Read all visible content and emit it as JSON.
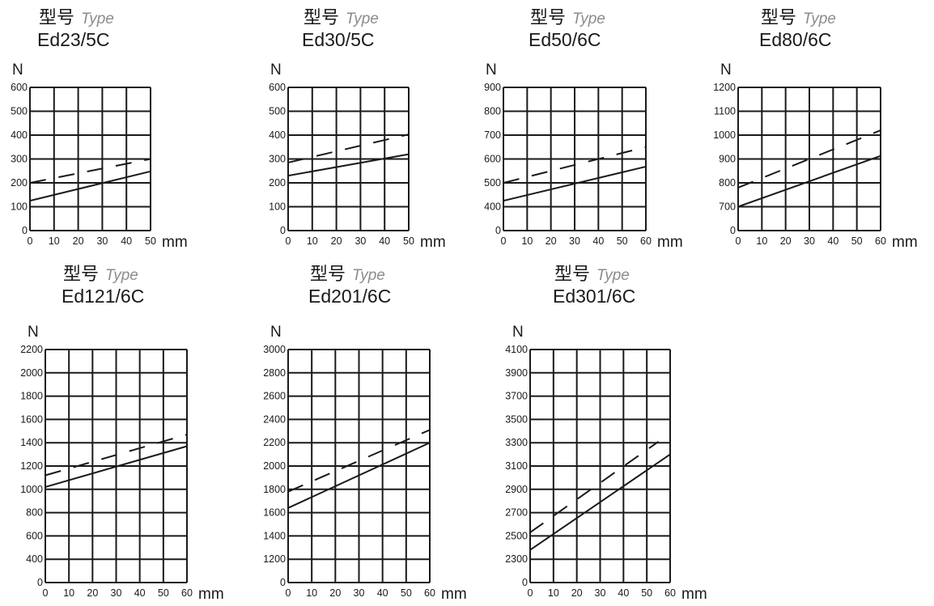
{
  "chart_data": [
    {
      "type": "line",
      "title": "型号",
      "title_en": "Type",
      "model": "Ed23/5C",
      "ylabel": "N",
      "xlabel": "mm",
      "xlim": [
        0,
        50
      ],
      "ylim": [
        0,
        600
      ],
      "xticks": [
        0,
        10,
        20,
        30,
        40,
        50
      ],
      "yticks": [
        0,
        100,
        200,
        300,
        400,
        500,
        600
      ],
      "grid": true,
      "series": [
        {
          "style": "dashed",
          "x": [
            0,
            50
          ],
          "y": [
            200,
            300
          ]
        },
        {
          "style": "solid",
          "x": [
            0,
            50
          ],
          "y": [
            125,
            248
          ]
        }
      ]
    },
    {
      "type": "line",
      "title": "型号",
      "title_en": "Type",
      "model": "Ed30/5C",
      "ylabel": "N",
      "xlabel": "mm",
      "xlim": [
        0,
        50
      ],
      "ylim": [
        0,
        600
      ],
      "xticks": [
        0,
        10,
        20,
        30,
        40,
        50
      ],
      "yticks": [
        0,
        100,
        200,
        300,
        400,
        500,
        600
      ],
      "grid": true,
      "series": [
        {
          "style": "dashed",
          "x": [
            0,
            50
          ],
          "y": [
            285,
            403
          ]
        },
        {
          "style": "solid",
          "x": [
            0,
            50
          ],
          "y": [
            230,
            320
          ]
        }
      ]
    },
    {
      "type": "line",
      "title": "型号",
      "title_en": "Type",
      "model": "Ed50/6C",
      "ylabel": "N",
      "xlabel": "mm",
      "xlim": [
        0,
        60
      ],
      "ylim": [
        0,
        900
      ],
      "xticks": [
        0,
        10,
        20,
        30,
        40,
        50,
        60
      ],
      "yticks": [
        0,
        400,
        500,
        600,
        700,
        800,
        900
      ],
      "grid": true,
      "series": [
        {
          "style": "dashed",
          "x": [
            0,
            60
          ],
          "y": [
            500,
            650
          ]
        },
        {
          "style": "solid",
          "x": [
            0,
            60
          ],
          "y": [
            425,
            568
          ]
        }
      ]
    },
    {
      "type": "line",
      "title": "型号",
      "title_en": "Type",
      "model": "Ed80/6C",
      "ylabel": "N",
      "xlabel": "mm",
      "xlim": [
        0,
        60
      ],
      "ylim": [
        0,
        1200
      ],
      "xticks": [
        0,
        10,
        20,
        30,
        40,
        50,
        60
      ],
      "yticks": [
        0,
        700,
        800,
        900,
        1000,
        1100,
        1200
      ],
      "grid": true,
      "series": [
        {
          "style": "dashed",
          "x": [
            0,
            60
          ],
          "y": [
            780,
            1020
          ]
        },
        {
          "style": "solid",
          "x": [
            0,
            60
          ],
          "y": [
            700,
            913
          ]
        }
      ]
    },
    {
      "type": "line",
      "title": "型号",
      "title_en": "Type",
      "model": "Ed121/6C",
      "ylabel": "N",
      "xlabel": "mm",
      "xlim": [
        0,
        60
      ],
      "ylim": [
        0,
        2200
      ],
      "xticks": [
        0,
        10,
        20,
        30,
        40,
        50,
        60
      ],
      "yticks": [
        0,
        400,
        600,
        800,
        1000,
        1200,
        1400,
        1600,
        1800,
        2000,
        2200
      ],
      "grid": true,
      "series": [
        {
          "style": "dashed",
          "x": [
            0,
            60
          ],
          "y": [
            1120,
            1470
          ]
        },
        {
          "style": "solid",
          "x": [
            0,
            60
          ],
          "y": [
            1020,
            1370
          ]
        }
      ]
    },
    {
      "type": "line",
      "title": "型号",
      "title_en": "Type",
      "model": "Ed201/6C",
      "ylabel": "N",
      "xlabel": "mm",
      "xlim": [
        0,
        60
      ],
      "ylim": [
        0,
        3000
      ],
      "xticks": [
        0,
        10,
        20,
        30,
        40,
        50,
        60
      ],
      "yticks": [
        0,
        1200,
        1400,
        1600,
        1800,
        2000,
        2200,
        2400,
        2600,
        2800,
        3000
      ],
      "grid": true,
      "series": [
        {
          "style": "dashed",
          "x": [
            0,
            60
          ],
          "y": [
            1780,
            2310
          ]
        },
        {
          "style": "solid",
          "x": [
            0,
            60
          ],
          "y": [
            1640,
            2200
          ]
        }
      ]
    },
    {
      "type": "line",
      "title": "型号",
      "title_en": "Type",
      "model": "Ed301/6C",
      "ylabel": "N",
      "xlabel": "mm",
      "xlim": [
        0,
        60
      ],
      "ylim": [
        0,
        4100
      ],
      "xticks": [
        0,
        10,
        20,
        30,
        40,
        50,
        60
      ],
      "yticks": [
        0,
        2300,
        2500,
        2700,
        2900,
        3100,
        3300,
        3500,
        3700,
        3900,
        4100
      ],
      "grid": true,
      "series": [
        {
          "style": "dashed",
          "x": [
            0,
            55
          ],
          "y": [
            2530,
            3310
          ]
        },
        {
          "style": "solid",
          "x": [
            0,
            60
          ],
          "y": [
            2380,
            3200
          ]
        }
      ]
    }
  ]
}
